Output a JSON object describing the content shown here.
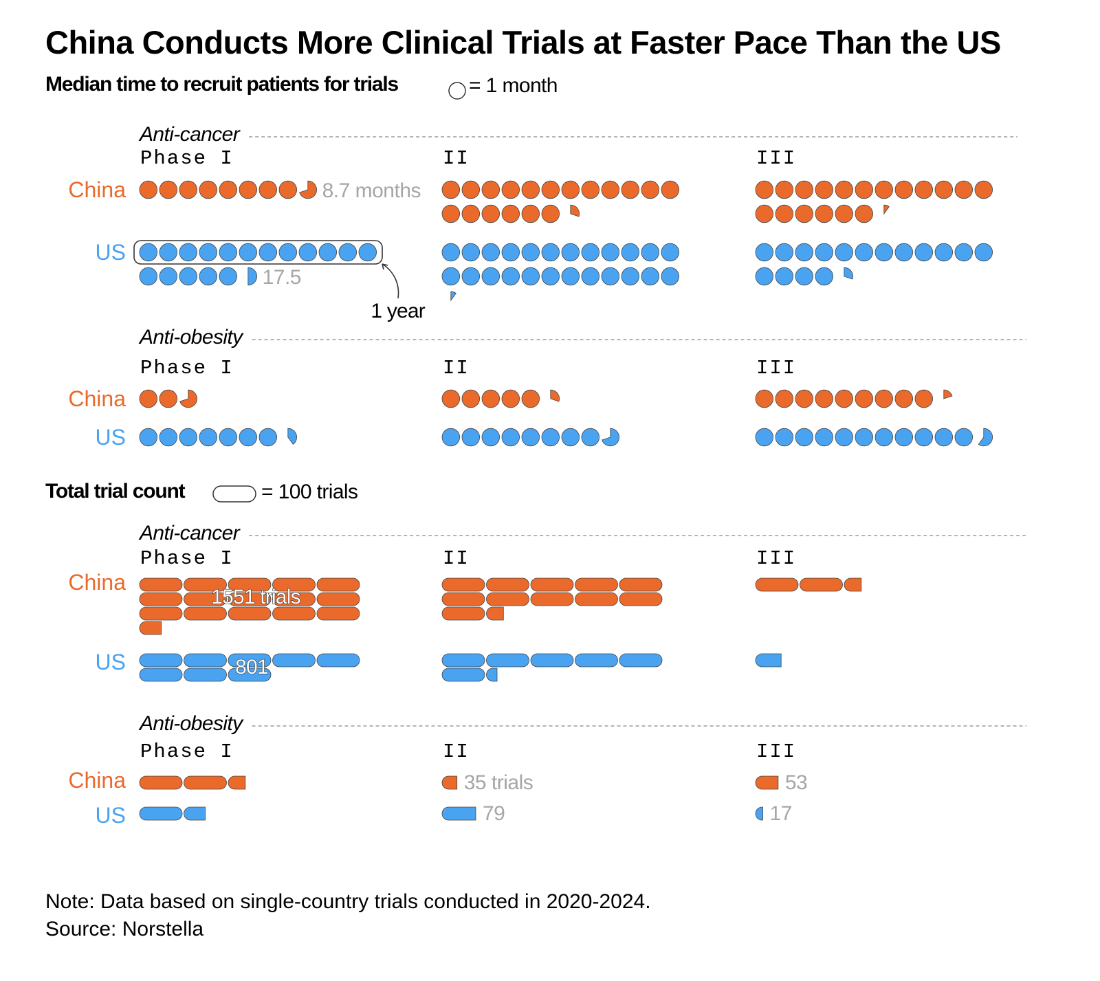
{
  "title": "China Conducts More Clinical Trials at Faster Pace Than the US",
  "section_time": {
    "heading": "Median time to recruit patients for trials",
    "legend_label": "= 1 month"
  },
  "section_count": {
    "heading": "Total trial count",
    "legend_label": "= 100 trials"
  },
  "labels": {
    "phase_first": "Phase I",
    "phase_2": "II",
    "phase_3": "III",
    "group_cancer": "Anti-cancer",
    "group_obesity": "Anti-obesity",
    "china": "China",
    "us": "US",
    "one_year": "1 year"
  },
  "colors": {
    "china": "#ea6a2c",
    "us": "#4aa3f0",
    "muted": "#a6a6a6"
  },
  "note": "Note: Data based on single-country trials conducted in 2020-2024.",
  "source": "Source: Norstella",
  "chart_data": [
    {
      "type": "pictogram",
      "unit": "1 month",
      "metric": "Median time to recruit patients for trials",
      "groups": [
        {
          "name": "Anti-cancer",
          "categories": [
            "Phase I",
            "II",
            "III"
          ],
          "series": [
            {
              "name": "China",
              "values": [
                8.7,
                18.3,
                18.1
              ],
              "labels": [
                "8.7 months",
                "",
                ""
              ]
            },
            {
              "name": "US",
              "values": [
                17.5,
                24.1,
                16.3
              ],
              "labels": [
                "17.5",
                "",
                ""
              ]
            }
          ]
        },
        {
          "name": "Anti-obesity",
          "categories": [
            "Phase I",
            "II",
            "III"
          ],
          "series": [
            {
              "name": "China",
              "values": [
                2.7,
                5.3,
                9.2
              ],
              "labels": [
                "",
                "",
                ""
              ]
            },
            {
              "name": "US",
              "values": [
                7.4,
                8.7,
                11.6
              ],
              "labels": [
                "",
                "",
                ""
              ]
            }
          ]
        }
      ],
      "annotation": "1 year"
    },
    {
      "type": "pictogram",
      "unit": "100 trials",
      "metric": "Total trial count",
      "groups": [
        {
          "name": "Anti-cancer",
          "categories": [
            "Phase I",
            "II",
            "III"
          ],
          "series": [
            {
              "name": "China",
              "values": [
                1551,
                1140,
                240
              ],
              "labels": [
                "1551 trials",
                "",
                ""
              ]
            },
            {
              "name": "US",
              "values": [
                801,
                625,
                60
              ],
              "labels": [
                "801",
                "",
                ""
              ]
            }
          ]
        },
        {
          "name": "Anti-obesity",
          "categories": [
            "Phase I",
            "II",
            "III"
          ],
          "series": [
            {
              "name": "China",
              "values": [
                240,
                35,
                53
              ],
              "labels": [
                "",
                "35 trials",
                "53"
              ]
            },
            {
              "name": "US",
              "values": [
                150,
                79,
                17
              ],
              "labels": [
                "",
                "79",
                "17"
              ]
            }
          ]
        }
      ]
    }
  ]
}
